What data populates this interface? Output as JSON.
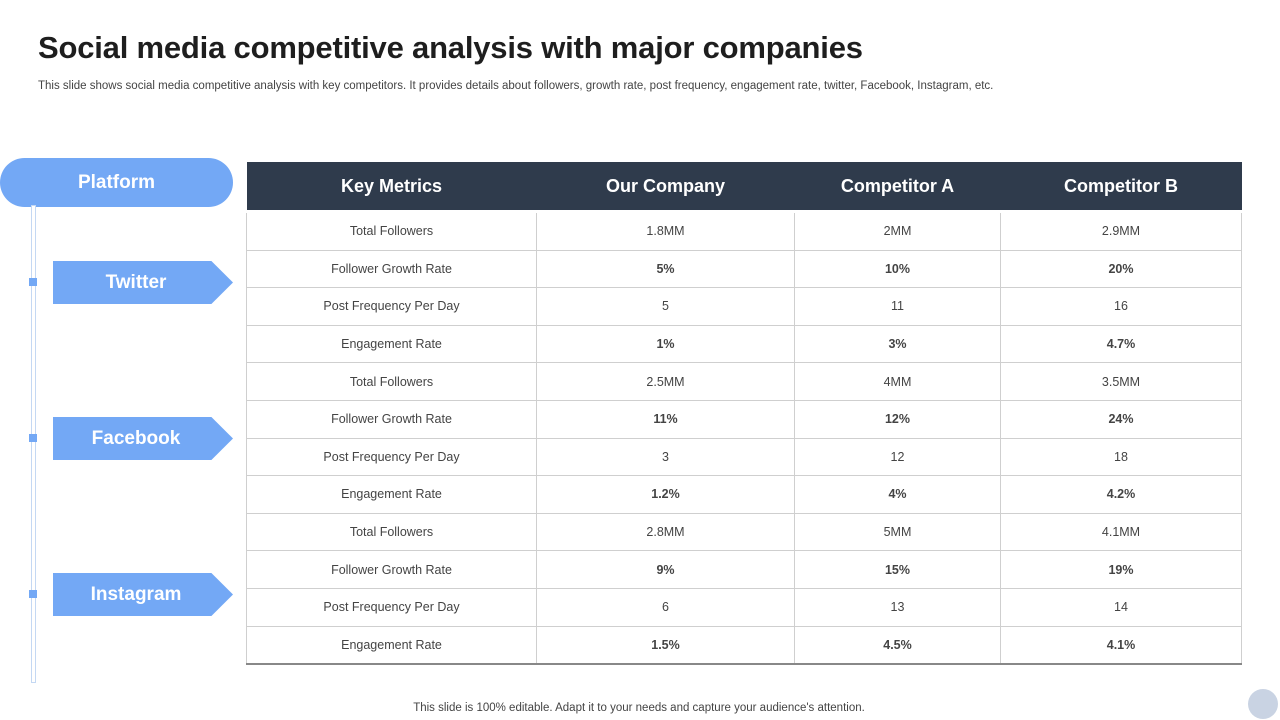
{
  "title": "Social media competitive analysis with major companies",
  "subtitle": "This slide shows social media competitive analysis with key competitors. It provides details about followers, growth rate, post frequency, engagement rate, twitter, Facebook, Instagram, etc.",
  "platform_label": "Platform",
  "platforms": [
    "Twitter",
    "Facebook",
    "Instagram"
  ],
  "table": {
    "headers": [
      "Key Metrics",
      "Our Company",
      "Competitor A",
      "Competitor B"
    ],
    "rows": [
      {
        "metric": "Total Followers",
        "ours": "1.8MM",
        "a": "2MM",
        "b": "2.9MM",
        "bold": false
      },
      {
        "metric": "Follower Growth Rate",
        "ours": "5%",
        "a": "10%",
        "b": "20%",
        "bold": true
      },
      {
        "metric": "Post Frequency Per Day",
        "ours": "5",
        "a": "11",
        "b": "16",
        "bold": false
      },
      {
        "metric": "Engagement Rate",
        "ours": "1%",
        "a": "3%",
        "b": "4.7%",
        "bold": true
      },
      {
        "metric": "Total Followers",
        "ours": "2.5MM",
        "a": "4MM",
        "b": "3.5MM",
        "bold": false
      },
      {
        "metric": "Follower Growth Rate",
        "ours": "11%",
        "a": "12%",
        "b": "24%",
        "bold": true
      },
      {
        "metric": "Post Frequency Per Day",
        "ours": "3",
        "a": "12",
        "b": "18",
        "bold": false
      },
      {
        "metric": "Engagement Rate",
        "ours": "1.2%",
        "a": "4%",
        "b": "4.2%",
        "bold": true
      },
      {
        "metric": "Total Followers",
        "ours": "2.8MM",
        "a": "5MM",
        "b": "4.1MM",
        "bold": false
      },
      {
        "metric": "Follower Growth Rate",
        "ours": "9%",
        "a": "15%",
        "b": "19%",
        "bold": true
      },
      {
        "metric": "Post Frequency Per Day",
        "ours": "6",
        "a": "13",
        "b": "14",
        "bold": false
      },
      {
        "metric": "Engagement Rate",
        "ours": "1.5%",
        "a": "4.5%",
        "b": "4.1%",
        "bold": true
      }
    ]
  },
  "footer": "This slide is 100% editable. Adapt it to your needs and capture your audience's attention.",
  "colors": {
    "accent": "#73a8f5",
    "header_bg": "#2f3b4c"
  }
}
